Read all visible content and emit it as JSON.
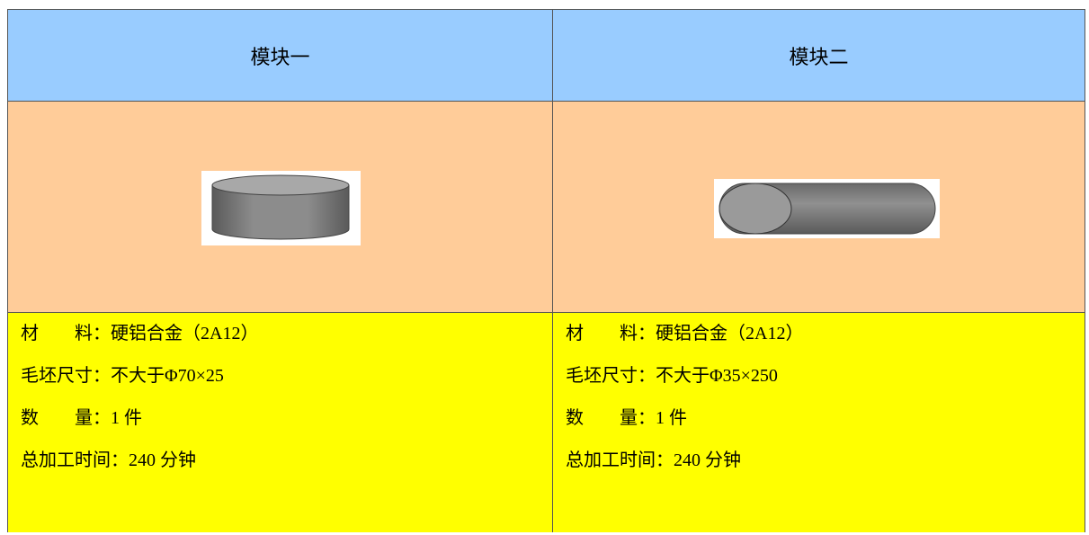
{
  "table": {
    "header": [
      "模块一",
      "模块二"
    ],
    "modules": [
      {
        "lines": [
          "材　　料：硬铝合金（2A12）",
          "毛坯尺寸：不大于Φ70×25",
          "数　　量：1 件",
          "总加工时间：240 分钟"
        ]
      },
      {
        "lines": [
          "材　　料：硬铝合金（2A12）",
          "毛坯尺寸：不大于Φ35×250",
          "数　　量：1 件",
          "总加工时间：240 分钟"
        ]
      }
    ]
  }
}
